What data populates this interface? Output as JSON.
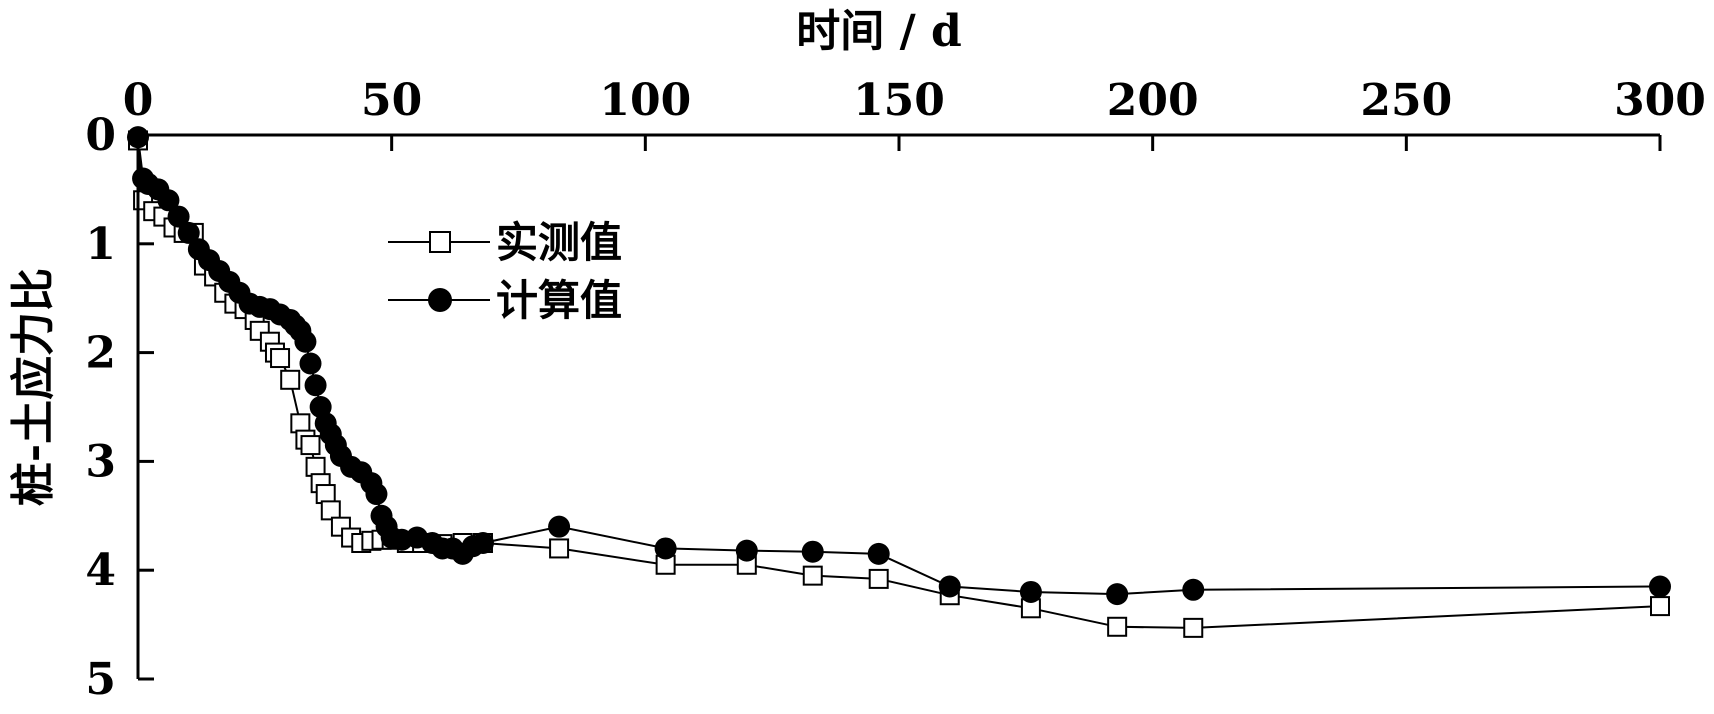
{
  "chart_data": {
    "type": "line",
    "xlabel": "时间 / d",
    "ylabel": "桩-土应力比",
    "xlim": [
      0,
      300
    ],
    "ylim": [
      0,
      5
    ],
    "x_axis_position": "top",
    "y_axis_inverted": true,
    "grid": false,
    "legend_position": "upper-left-inside",
    "x_ticks": [
      "0",
      "50",
      "100",
      "150",
      "200",
      "250",
      "300"
    ],
    "x_tick_values": [
      0,
      50,
      100,
      150,
      200,
      250,
      300
    ],
    "y_ticks": [
      "0",
      "1",
      "2",
      "3",
      "4",
      "5"
    ],
    "y_tick_values": [
      0,
      1,
      2,
      3,
      4,
      5
    ],
    "series": [
      {
        "name": "实测值",
        "marker": "open-square",
        "color": "#000000",
        "x": [
          0,
          1,
          3,
          5,
          7,
          9,
          11,
          13,
          15,
          17,
          19,
          21,
          23,
          24,
          26,
          27,
          28,
          30,
          32,
          33,
          34,
          35,
          36,
          37,
          38,
          40,
          42,
          44,
          46,
          48,
          50,
          53,
          56,
          60,
          64,
          68,
          83,
          104,
          120,
          133,
          146,
          160,
          176,
          193,
          208,
          300
        ],
        "y": [
          0.05,
          0.6,
          0.7,
          0.75,
          0.85,
          0.9,
          0.9,
          1.2,
          1.3,
          1.45,
          1.55,
          1.6,
          1.7,
          1.8,
          1.9,
          2.0,
          2.05,
          2.25,
          2.65,
          2.8,
          2.85,
          3.05,
          3.2,
          3.3,
          3.45,
          3.6,
          3.7,
          3.75,
          3.73,
          3.72,
          3.72,
          3.75,
          3.75,
          3.76,
          3.75,
          3.75,
          3.8,
          3.95,
          3.95,
          4.05,
          4.08,
          4.23,
          4.35,
          4.52,
          4.53,
          4.33
        ]
      },
      {
        "name": "计算值",
        "marker": "filled-circle",
        "color": "#000000",
        "x": [
          0,
          1,
          2,
          4,
          6,
          8,
          10,
          12,
          14,
          16,
          18,
          20,
          22,
          24,
          26,
          28,
          30,
          31,
          32,
          33,
          34,
          35,
          36,
          37,
          38,
          39,
          40,
          42,
          44,
          46,
          47,
          48,
          49,
          50,
          52,
          55,
          58,
          60,
          62,
          64,
          66,
          68,
          83,
          104,
          120,
          133,
          146,
          160,
          176,
          193,
          208,
          300
        ],
        "y": [
          0.02,
          0.4,
          0.45,
          0.5,
          0.6,
          0.75,
          0.9,
          1.05,
          1.15,
          1.25,
          1.35,
          1.45,
          1.55,
          1.58,
          1.6,
          1.65,
          1.7,
          1.75,
          1.8,
          1.9,
          2.1,
          2.3,
          2.5,
          2.65,
          2.75,
          2.85,
          2.95,
          3.05,
          3.1,
          3.2,
          3.3,
          3.5,
          3.6,
          3.7,
          3.72,
          3.7,
          3.75,
          3.8,
          3.8,
          3.85,
          3.78,
          3.75,
          3.6,
          3.8,
          3.82,
          3.83,
          3.85,
          4.15,
          4.2,
          4.22,
          4.18,
          4.15
        ]
      }
    ]
  }
}
